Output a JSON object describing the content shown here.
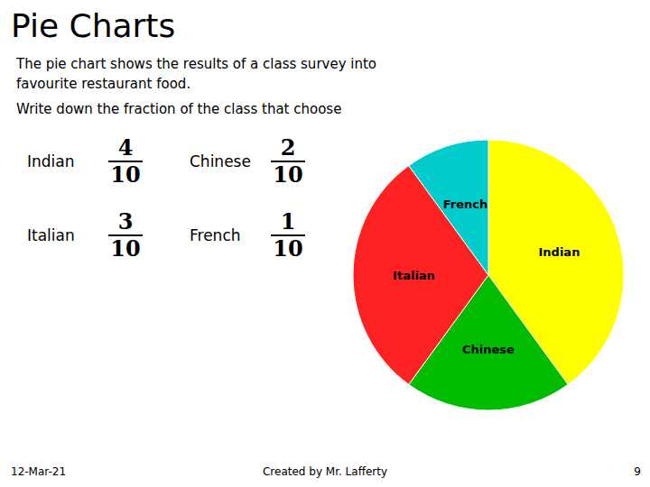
{
  "chart_data": {
    "type": "pie",
    "title": "Pie Charts",
    "subtitle": "The pie chart shows the results of a class survey into\nfavourite restaurant food.",
    "categories": [
      "Indian",
      "Chinese",
      "Italian",
      "French"
    ],
    "values": [
      4,
      2,
      3,
      1
    ],
    "colors": [
      "#FFFF00",
      "#00BB00",
      "#FF2222",
      "#00CCCC"
    ],
    "annotations": [
      "Write down the fraction of the class that choose",
      "12-Mar-21",
      "Created by Mr. Lafferty",
      "9"
    ],
    "fractions": [
      {
        "label": "Indian",
        "numerator": 4,
        "denominator": 10
      },
      {
        "label": "Chinese",
        "numerator": 2,
        "denominator": 10
      },
      {
        "label": "Italian",
        "numerator": 3,
        "denominator": 10
      },
      {
        "label": "French",
        "numerator": 1,
        "denominator": 10
      }
    ]
  }
}
